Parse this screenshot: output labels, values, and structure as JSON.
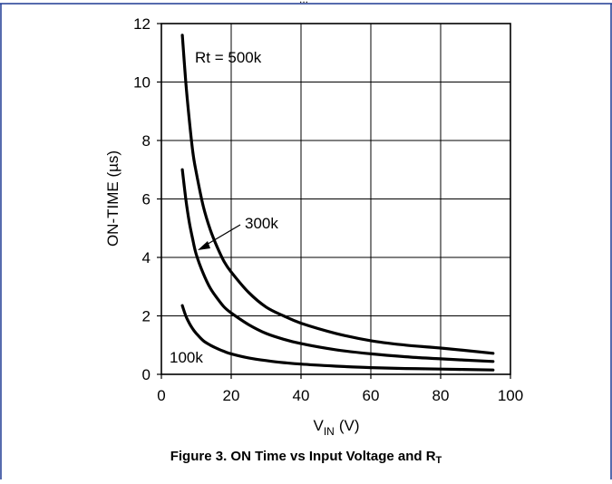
{
  "chart_data": {
    "type": "line",
    "title": "",
    "xlabel": "V",
    "xlabel_sub": "IN",
    "xlabel_unit": "(V)",
    "ylabel": "ON-TIME (µs)",
    "xlim": [
      0,
      100
    ],
    "ylim": [
      0,
      12
    ],
    "xticks": [
      "0",
      "20",
      "40",
      "60",
      "80",
      "100"
    ],
    "yticks": [
      "0",
      "2",
      "4",
      "6",
      "8",
      "10",
      "12"
    ],
    "grid": true,
    "series": [
      {
        "name": "Rt = 500k",
        "x": [
          6,
          7,
          8,
          9,
          10,
          12,
          14,
          16,
          18,
          20,
          25,
          30,
          35,
          40,
          50,
          60,
          70,
          80,
          95
        ],
        "y": [
          11.6,
          10.0,
          8.7,
          7.6,
          6.9,
          5.75,
          4.95,
          4.35,
          3.85,
          3.5,
          2.8,
          2.3,
          2.0,
          1.75,
          1.4,
          1.15,
          1.0,
          0.9,
          0.72
        ]
      },
      {
        "name": "300k",
        "x": [
          6,
          7,
          8,
          9,
          10,
          12,
          14,
          16,
          18,
          20,
          25,
          30,
          35,
          40,
          50,
          60,
          70,
          80,
          95
        ],
        "y": [
          7.0,
          6.0,
          5.2,
          4.6,
          4.1,
          3.45,
          2.95,
          2.6,
          2.3,
          2.1,
          1.7,
          1.4,
          1.2,
          1.05,
          0.84,
          0.7,
          0.6,
          0.53,
          0.44
        ]
      },
      {
        "name": "100k",
        "x": [
          6,
          7,
          8,
          9,
          10,
          12,
          14,
          16,
          18,
          20,
          25,
          30,
          35,
          40,
          50,
          60,
          70,
          80,
          95
        ],
        "y": [
          2.35,
          2.0,
          1.75,
          1.55,
          1.4,
          1.15,
          1.0,
          0.88,
          0.78,
          0.7,
          0.56,
          0.47,
          0.4,
          0.35,
          0.28,
          0.23,
          0.2,
          0.18,
          0.15
        ]
      }
    ],
    "annotations": [
      "Rt = 500k",
      "300k",
      "100k"
    ]
  },
  "caption": {
    "text": "Figure 3. ON Time vs Input Voltage and R",
    "sub": "T"
  },
  "header_partial_text": "...",
  "colors": {
    "line": "#000000",
    "grid": "#000000",
    "frame_border": "#1f3a93"
  }
}
